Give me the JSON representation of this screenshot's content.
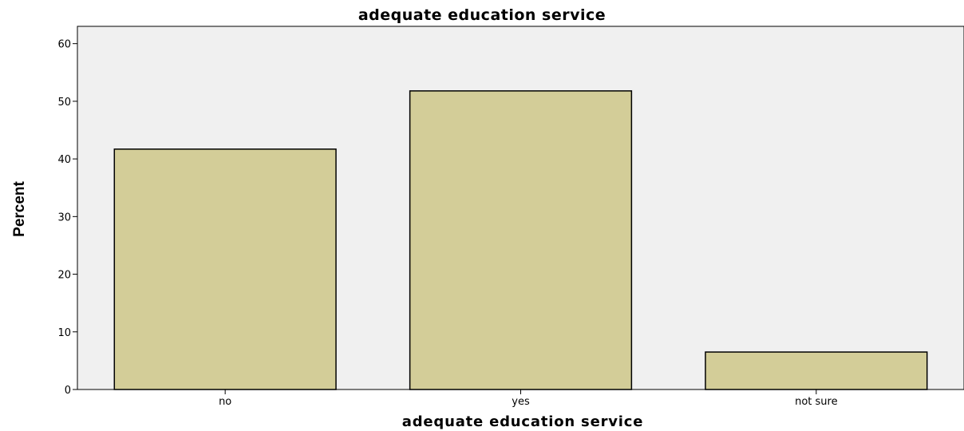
{
  "chart_data": {
    "type": "bar",
    "title": "adequate education service",
    "xlabel": "adequate education service",
    "ylabel": "Percent",
    "categories": [
      "no",
      "yes",
      "not sure"
    ],
    "values": [
      41.7,
      51.8,
      6.5
    ],
    "ylim": [
      0,
      63
    ],
    "yticks": [
      0,
      10,
      20,
      30,
      40,
      50,
      60
    ],
    "grid": false,
    "colors": {
      "bar_fill": "#d3cd98",
      "bar_stroke": "#000000",
      "plot_background": "#f0f0f0",
      "axis": "#000000"
    }
  }
}
